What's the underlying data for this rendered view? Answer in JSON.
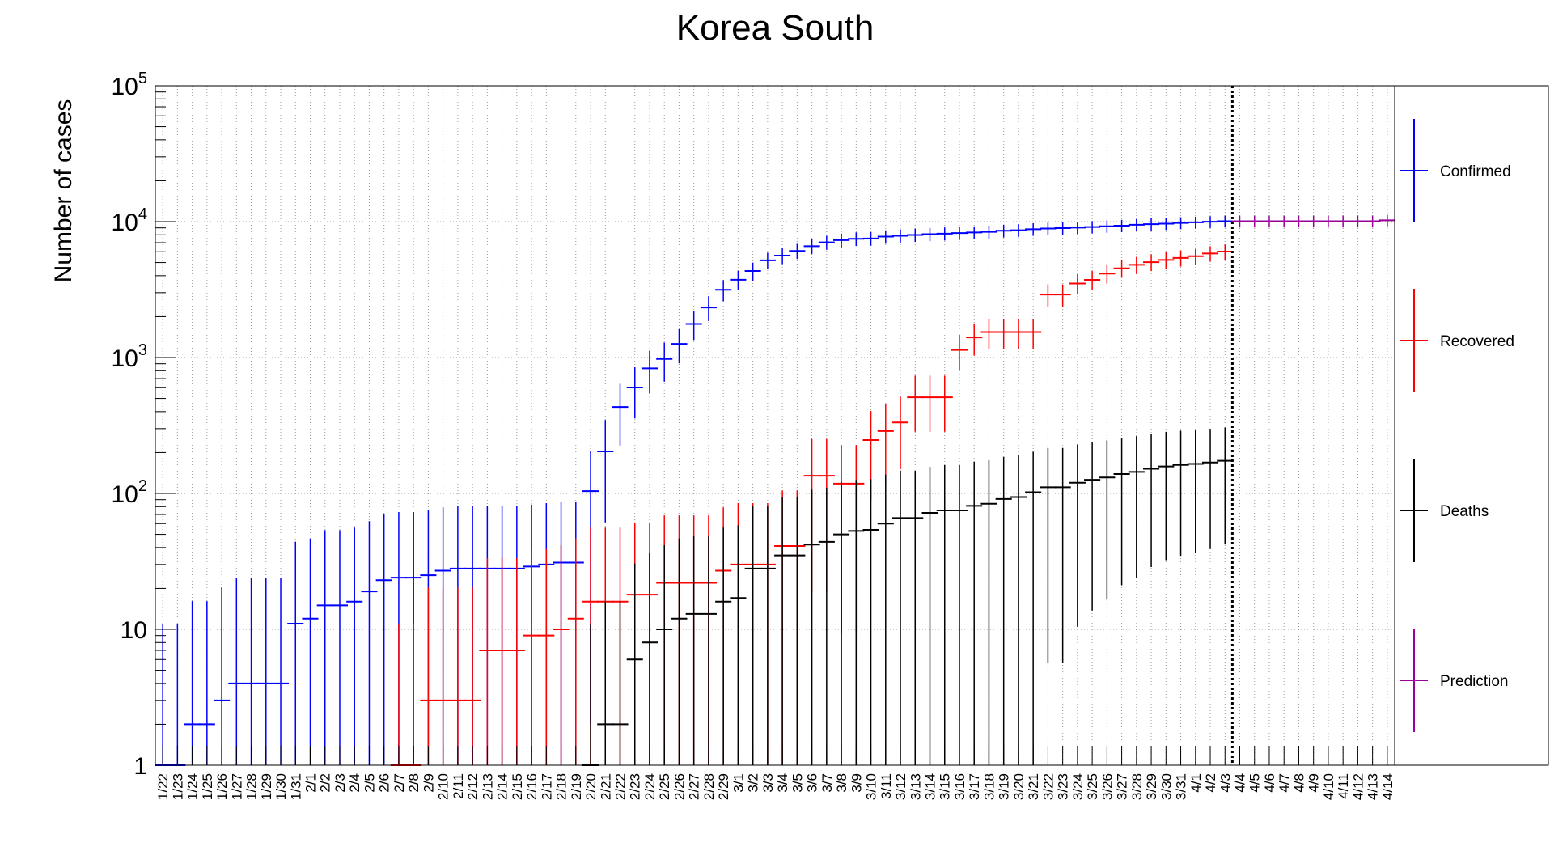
{
  "chart_data": {
    "type": "scatter",
    "title": "Korea South",
    "xlabel": "",
    "ylabel": "Number of cases",
    "yscale": "log",
    "ylim": [
      1,
      100000
    ],
    "y_tick_labels": [
      {
        "value": 1,
        "base": "1",
        "exp": ""
      },
      {
        "value": 10,
        "base": "10",
        "exp": ""
      },
      {
        "value": 100,
        "base": "10",
        "exp": "2"
      },
      {
        "value": 1000,
        "base": "10",
        "exp": "3"
      },
      {
        "value": 10000,
        "base": "10",
        "exp": "4"
      },
      {
        "value": 100000,
        "base": "10",
        "exp": "5"
      }
    ],
    "grid": true,
    "legend_position": "right",
    "marker_line_label": "4/4",
    "categories": [
      "1/22",
      "1/23",
      "1/24",
      "1/25",
      "1/26",
      "1/27",
      "1/28",
      "1/29",
      "1/30",
      "1/31",
      "2/1",
      "2/2",
      "2/3",
      "2/4",
      "2/5",
      "2/6",
      "2/7",
      "2/8",
      "2/9",
      "2/10",
      "2/11",
      "2/12",
      "2/13",
      "2/14",
      "2/15",
      "2/16",
      "2/17",
      "2/18",
      "2/19",
      "2/20",
      "2/21",
      "2/22",
      "2/23",
      "2/24",
      "2/25",
      "2/26",
      "2/27",
      "2/28",
      "2/29",
      "3/1",
      "3/2",
      "3/3",
      "3/4",
      "3/5",
      "3/6",
      "3/7",
      "3/8",
      "3/9",
      "3/10",
      "3/11",
      "3/12",
      "3/13",
      "3/14",
      "3/15",
      "3/16",
      "3/17",
      "3/18",
      "3/19",
      "3/20",
      "3/21",
      "3/22",
      "3/23",
      "3/24",
      "3/25",
      "3/26",
      "3/27",
      "3/28",
      "3/29",
      "3/30",
      "3/31",
      "4/1",
      "4/2",
      "4/3",
      "4/4",
      "4/5",
      "4/6",
      "4/7",
      "4/8",
      "4/9",
      "4/10",
      "4/11",
      "4/12",
      "4/13",
      "4/14"
    ],
    "series": [
      {
        "name": "Confirmed",
        "color": "#0000ff",
        "values": [
          1,
          1,
          2,
          2,
          3,
          4,
          4,
          4,
          4,
          11,
          12,
          15,
          15,
          16,
          19,
          23,
          24,
          24,
          25,
          27,
          28,
          28,
          28,
          28,
          28,
          29,
          30,
          31,
          31,
          104,
          204,
          433,
          602,
          833,
          977,
          1261,
          1766,
          2337,
          3150,
          3736,
          4335,
          5186,
          5621,
          6088,
          6593,
          7041,
          7314,
          7478,
          7513,
          7755,
          7869,
          7979,
          8086,
          8162,
          8236,
          8320,
          8413,
          8565,
          8652,
          8799,
          8897,
          8961,
          9037,
          9137,
          9241,
          9332,
          9478,
          9583,
          9661,
          9786,
          9887,
          9976,
          10062
        ]
      },
      {
        "name": "Recovered",
        "color": "#ff0000",
        "values": [
          0,
          0,
          0,
          0,
          0,
          0,
          0,
          0,
          0,
          0,
          0,
          0,
          0,
          0,
          0,
          0,
          1,
          1,
          3,
          3,
          3,
          3,
          7,
          7,
          7,
          9,
          9,
          10,
          12,
          16,
          16,
          16,
          18,
          18,
          22,
          22,
          22,
          22,
          27,
          30,
          30,
          30,
          41,
          41,
          135,
          135,
          118,
          118,
          247,
          288,
          333,
          510,
          510,
          510,
          1137,
          1407,
          1540,
          1540,
          1540,
          1540,
          2909,
          2909,
          3507,
          3730,
          4144,
          4528,
          4811,
          5033,
          5228,
          5408,
          5567,
          5828,
          6021
        ]
      },
      {
        "name": "Deaths",
        "color": "#000000",
        "values": [
          0,
          0,
          0,
          0,
          0,
          0,
          0,
          0,
          0,
          0,
          0,
          0,
          0,
          0,
          0,
          0,
          0,
          0,
          0,
          0,
          0,
          0,
          0,
          0,
          0,
          0,
          0,
          0,
          0,
          1,
          2,
          2,
          6,
          8,
          10,
          12,
          13,
          13,
          16,
          17,
          28,
          28,
          35,
          35,
          42,
          44,
          50,
          53,
          54,
          60,
          66,
          66,
          72,
          75,
          75,
          81,
          84,
          91,
          94,
          102,
          111,
          111,
          120,
          126,
          131,
          139,
          144,
          152,
          158,
          162,
          165,
          169,
          174
        ]
      },
      {
        "name": "Prediction",
        "color": "#990099",
        "values": [
          null,
          null,
          null,
          null,
          null,
          null,
          null,
          null,
          null,
          null,
          null,
          null,
          null,
          null,
          null,
          null,
          null,
          null,
          null,
          null,
          null,
          null,
          null,
          null,
          null,
          null,
          null,
          null,
          null,
          null,
          null,
          null,
          null,
          null,
          null,
          null,
          null,
          null,
          null,
          null,
          null,
          null,
          null,
          null,
          null,
          null,
          null,
          null,
          null,
          null,
          null,
          null,
          null,
          null,
          null,
          null,
          null,
          null,
          null,
          null,
          null,
          null,
          null,
          null,
          null,
          null,
          null,
          null,
          null,
          null,
          null,
          null,
          null,
          10062,
          10062,
          10062,
          10062,
          10062,
          10062,
          10062,
          10062,
          10062,
          10062,
          10230
        ]
      }
    ]
  }
}
